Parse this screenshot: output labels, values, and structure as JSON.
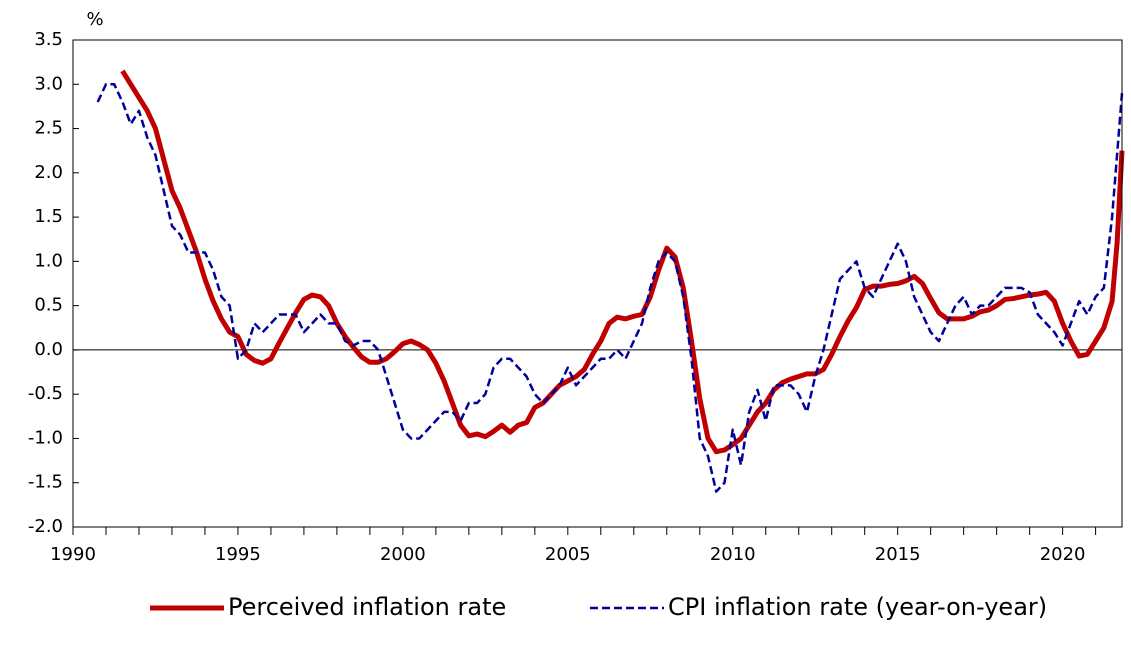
{
  "chart_data": {
    "type": "line",
    "y_unit_label": "%",
    "xlim": [
      1990,
      2021.8
    ],
    "xticks": [
      1990,
      1995,
      2000,
      2005,
      2010,
      2015,
      2020
    ],
    "xminorticks": [
      1991,
      1992,
      1993,
      1994,
      1996,
      1997,
      1998,
      1999,
      2001,
      2002,
      2003,
      2004,
      2006,
      2007,
      2008,
      2009,
      2011,
      2012,
      2013,
      2014,
      2016,
      2017,
      2018,
      2019,
      2021
    ],
    "ylim": [
      -2,
      3.5
    ],
    "yticks": [
      {
        "value": -2,
        "label": "-2.0"
      },
      -1.5,
      {
        "value": -1,
        "label": "-1.0"
      },
      -0.5,
      {
        "value": 0,
        "label": "0.0"
      },
      0.5,
      {
        "value": 1,
        "label": "1.0"
      },
      1.5,
      {
        "value": 2,
        "label": "2.0"
      },
      2.5,
      {
        "value": 3,
        "label": "3.0"
      },
      3.5
    ],
    "zero_line": true,
    "legend": "bottom",
    "series": [
      {
        "name": "Perceived inflation rate",
        "color": "#c00000",
        "style": "solid",
        "x": [
          1991.5,
          1991.75,
          1992,
          1992.25,
          1992.5,
          1992.75,
          1993,
          1993.25,
          1993.5,
          1993.75,
          1994,
          1994.25,
          1994.5,
          1994.75,
          1995,
          1995.25,
          1995.5,
          1995.75,
          1996,
          1996.25,
          1996.5,
          1996.75,
          1997,
          1997.25,
          1997.5,
          1997.75,
          1998,
          1998.25,
          1998.5,
          1998.75,
          1999,
          1999.25,
          1999.5,
          1999.75,
          2000,
          2000.25,
          2000.5,
          2000.75,
          2001,
          2001.25,
          2001.5,
          2001.75,
          2002,
          2002.25,
          2002.5,
          2002.75,
          2003,
          2003.25,
          2003.5,
          2003.75,
          2004,
          2004.25,
          2004.5,
          2004.75,
          2005,
          2005.25,
          2005.5,
          2005.75,
          2006,
          2006.25,
          2006.5,
          2006.75,
          2007,
          2007.25,
          2007.5,
          2007.75,
          2008,
          2008.25,
          2008.5,
          2008.75,
          2009,
          2009.25,
          2009.5,
          2009.75,
          2010,
          2010.25,
          2010.5,
          2010.75,
          2011,
          2011.25,
          2011.5,
          2011.75,
          2012,
          2012.25,
          2012.5,
          2012.75,
          2013,
          2013.25,
          2013.5,
          2013.75,
          2014,
          2014.25,
          2014.5,
          2014.75,
          2015,
          2015.25,
          2015.5,
          2015.75,
          2016,
          2016.25,
          2016.5,
          2016.75,
          2017,
          2017.25,
          2017.5,
          2017.75,
          2018,
          2018.25,
          2018.5,
          2018.75,
          2019,
          2019.25,
          2019.5,
          2019.75,
          2020,
          2020.25,
          2020.5,
          2020.75,
          2021,
          2021.25,
          2021.5,
          2021.65,
          2021.8
        ],
        "values": [
          3.15,
          3.0,
          2.85,
          2.7,
          2.5,
          2.15,
          1.8,
          1.6,
          1.35,
          1.1,
          0.8,
          0.55,
          0.35,
          0.2,
          0.15,
          -0.05,
          -0.12,
          -0.15,
          -0.1,
          0.08,
          0.25,
          0.42,
          0.57,
          0.62,
          0.6,
          0.5,
          0.3,
          0.15,
          0.03,
          -0.08,
          -0.14,
          -0.14,
          -0.1,
          -0.02,
          0.07,
          0.1,
          0.06,
          0.0,
          -0.15,
          -0.35,
          -0.6,
          -0.85,
          -0.97,
          -0.95,
          -0.98,
          -0.92,
          -0.85,
          -0.93,
          -0.85,
          -0.82,
          -0.65,
          -0.6,
          -0.5,
          -0.4,
          -0.35,
          -0.3,
          -0.22,
          -0.05,
          0.1,
          0.3,
          0.37,
          0.35,
          0.38,
          0.4,
          0.6,
          0.9,
          1.15,
          1.05,
          0.7,
          0.1,
          -0.55,
          -1.0,
          -1.15,
          -1.13,
          -1.07,
          -1.0,
          -0.85,
          -0.7,
          -0.6,
          -0.45,
          -0.37,
          -0.33,
          -0.3,
          -0.27,
          -0.27,
          -0.22,
          -0.05,
          0.15,
          0.33,
          0.48,
          0.68,
          0.72,
          0.72,
          0.74,
          0.75,
          0.78,
          0.83,
          0.75,
          0.58,
          0.42,
          0.35,
          0.35,
          0.35,
          0.38,
          0.43,
          0.45,
          0.5,
          0.57,
          0.58,
          0.6,
          0.62,
          0.63,
          0.65,
          0.55,
          0.3,
          0.1,
          -0.07,
          -0.05,
          0.1,
          0.25,
          0.55,
          1.2,
          2.25
        ]
      },
      {
        "name": "CPI inflation rate (year-on-year)",
        "color": "#00009c",
        "style": "dashed",
        "x": [
          1990.75,
          1991,
          1991.25,
          1991.5,
          1991.75,
          1992,
          1992.25,
          1992.5,
          1992.75,
          1993,
          1993.25,
          1993.5,
          1993.75,
          1994,
          1994.25,
          1994.5,
          1994.75,
          1995,
          1995.25,
          1995.5,
          1995.75,
          1996,
          1996.25,
          1996.5,
          1996.75,
          1997,
          1997.25,
          1997.5,
          1997.75,
          1998,
          1998.25,
          1998.5,
          1998.75,
          1999,
          1999.25,
          1999.5,
          1999.75,
          2000,
          2000.25,
          2000.5,
          2000.75,
          2001,
          2001.25,
          2001.5,
          2001.75,
          2002,
          2002.25,
          2002.5,
          2002.75,
          2003,
          2003.25,
          2003.5,
          2003.75,
          2004,
          2004.25,
          2004.5,
          2004.75,
          2005,
          2005.25,
          2005.5,
          2005.75,
          2006,
          2006.25,
          2006.5,
          2006.75,
          2007,
          2007.25,
          2007.5,
          2007.75,
          2008,
          2008.25,
          2008.5,
          2008.75,
          2009,
          2009.25,
          2009.5,
          2009.75,
          2010,
          2010.25,
          2010.5,
          2010.75,
          2011,
          2011.25,
          2011.5,
          2011.75,
          2012,
          2012.25,
          2012.5,
          2012.75,
          2013,
          2013.25,
          2013.5,
          2013.75,
          2014,
          2014.25,
          2014.5,
          2014.75,
          2015,
          2015.25,
          2015.5,
          2015.75,
          2016,
          2016.25,
          2016.5,
          2016.75,
          2017,
          2017.25,
          2017.5,
          2017.75,
          2018,
          2018.25,
          2018.5,
          2018.75,
          2019,
          2019.25,
          2019.5,
          2019.75,
          2020,
          2020.25,
          2020.5,
          2020.75,
          2021,
          2021.25,
          2021.5,
          2021.8
        ],
        "values": [
          2.8,
          3.0,
          3.0,
          2.8,
          2.55,
          2.7,
          2.4,
          2.2,
          1.8,
          1.4,
          1.3,
          1.1,
          1.1,
          1.1,
          0.9,
          0.6,
          0.5,
          -0.1,
          0.0,
          0.3,
          0.2,
          0.3,
          0.4,
          0.4,
          0.4,
          0.2,
          0.3,
          0.4,
          0.3,
          0.3,
          0.1,
          0.05,
          0.1,
          0.1,
          0.0,
          -0.3,
          -0.6,
          -0.9,
          -1.0,
          -1.0,
          -0.9,
          -0.8,
          -0.7,
          -0.7,
          -0.8,
          -0.6,
          -0.6,
          -0.5,
          -0.2,
          -0.1,
          -0.1,
          -0.2,
          -0.3,
          -0.5,
          -0.6,
          -0.5,
          -0.4,
          -0.2,
          -0.4,
          -0.3,
          -0.2,
          -0.1,
          -0.1,
          0.0,
          -0.1,
          0.1,
          0.3,
          0.7,
          1.0,
          1.1,
          1.0,
          0.6,
          -0.1,
          -1.0,
          -1.2,
          -1.6,
          -1.5,
          -0.9,
          -1.3,
          -0.7,
          -0.45,
          -0.8,
          -0.4,
          -0.4,
          -0.4,
          -0.5,
          -0.7,
          -0.3,
          0.0,
          0.4,
          0.8,
          0.9,
          1.0,
          0.7,
          0.6,
          0.8,
          1.0,
          1.2,
          1.0,
          0.6,
          0.4,
          0.2,
          0.1,
          0.3,
          0.5,
          0.6,
          0.4,
          0.5,
          0.5,
          0.6,
          0.7,
          0.7,
          0.7,
          0.65,
          0.4,
          0.3,
          0.2,
          0.05,
          0.3,
          0.55,
          0.4,
          0.6,
          0.7,
          1.5,
          2.9
        ]
      }
    ]
  }
}
